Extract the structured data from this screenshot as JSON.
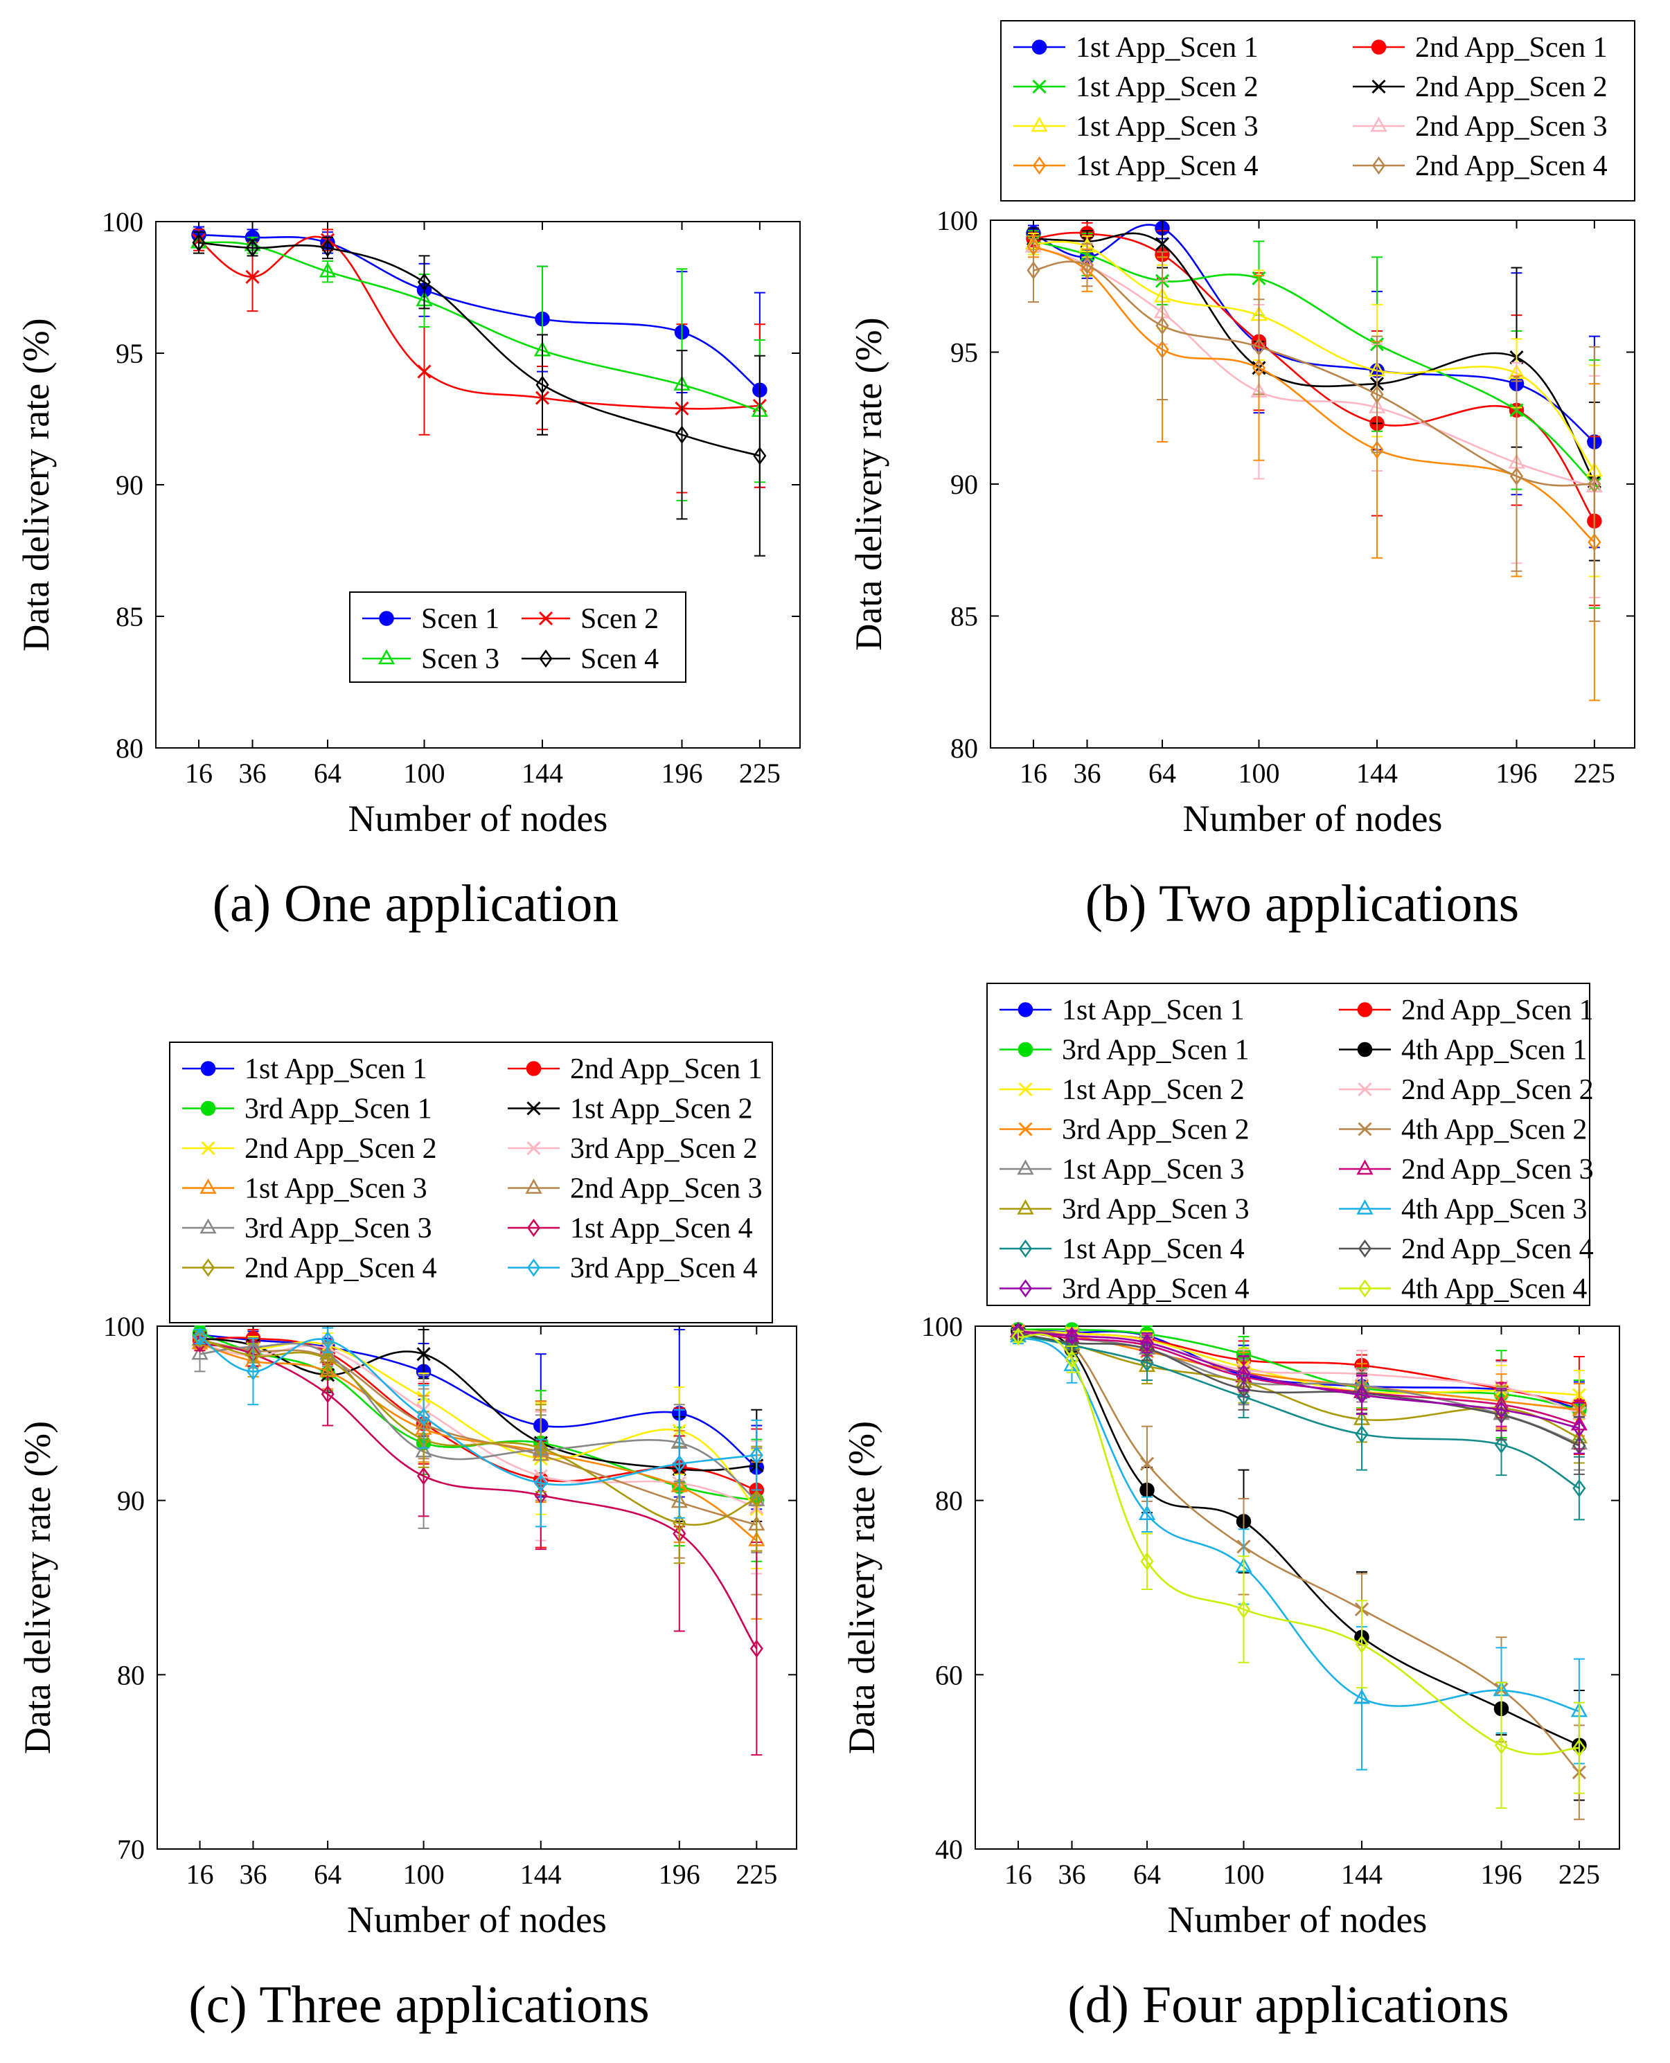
{
  "colors": {
    "blue": "#0000ff",
    "red": "#ff0000",
    "green": "#00dd00",
    "black": "#000000",
    "yellow": "#ffee00",
    "pink": "#ffb6c1",
    "orange": "#ff8800",
    "brown": "#b8864b",
    "gray": "#888888",
    "purple": "#9900aa",
    "cyan": "#1ab0e8",
    "teal": "#128b8b",
    "darkgray": "#555555",
    "olive": "#aa9900",
    "lime": "#ccee00",
    "crimson": "#cc0055"
  },
  "chart_data": [
    {
      "id": "a",
      "type": "line",
      "caption": "(a) One application",
      "xlabel": "Number of nodes",
      "ylabel": "Data delivery rate (%)",
      "x": [
        16,
        36,
        64,
        100,
        144,
        196,
        225
      ],
      "xticks": [
        "16",
        "36",
        "64",
        "100",
        "144",
        "196",
        "225"
      ],
      "ylim": [
        80,
        100
      ],
      "yticks": [
        80,
        85,
        90,
        95,
        100
      ],
      "legend_position": "inside-lower-right",
      "legend_cols": 2,
      "series": [
        {
          "name": "Scen 1",
          "color": "#0000ff",
          "marker": "dot",
          "values": [
            99.5,
            99.4,
            99.2,
            97.4,
            96.3,
            95.8,
            93.6
          ],
          "err": [
            0.3,
            0.3,
            0.4,
            1.0,
            2.0,
            2.3,
            3.7
          ]
        },
        {
          "name": "Scen 2",
          "color": "#ff0000",
          "marker": "x",
          "values": [
            99.3,
            97.9,
            99.3,
            94.3,
            93.3,
            92.9,
            93.0
          ],
          "err": [
            0.4,
            1.3,
            0.4,
            2.4,
            1.2,
            3.2,
            3.1
          ]
        },
        {
          "name": "Scen 3",
          "color": "#00dd00",
          "marker": "tri",
          "values": [
            99.2,
            99.1,
            98.1,
            97.0,
            95.1,
            93.8,
            92.8
          ],
          "err": [
            0.4,
            0.3,
            0.4,
            1.0,
            3.2,
            4.4,
            2.7
          ]
        },
        {
          "name": "Scen 4",
          "color": "#000000",
          "marker": "diamond",
          "values": [
            99.2,
            99.0,
            99.0,
            97.7,
            93.8,
            91.9,
            91.1
          ],
          "err": [
            0.4,
            0.3,
            0.4,
            1.0,
            1.9,
            3.2,
            3.8
          ]
        }
      ]
    },
    {
      "id": "b",
      "type": "line",
      "caption": "(b) Two applications",
      "xlabel": "Number of nodes",
      "ylabel": "Data delivery rate (%)",
      "x": [
        16,
        36,
        64,
        100,
        144,
        196,
        225
      ],
      "xticks": [
        "16",
        "36",
        "64",
        "100",
        "144",
        "196",
        "225"
      ],
      "ylim": [
        80,
        100
      ],
      "yticks": [
        80,
        85,
        90,
        95,
        100
      ],
      "legend_position": "above",
      "legend_cols": 2,
      "series": [
        {
          "name": "1st App_Scen 1",
          "color": "#0000ff",
          "marker": "dot",
          "values": [
            99.5,
            98.6,
            99.7,
            95.3,
            94.3,
            93.8,
            91.6
          ],
          "err": [
            0.3,
            0.8,
            0.4,
            2.6,
            3.0,
            4.2,
            4.0
          ]
        },
        {
          "name": "2nd App_Scen 1",
          "color": "#ff0000",
          "marker": "dot",
          "values": [
            99.3,
            99.5,
            98.7,
            95.4,
            92.3,
            92.8,
            88.6
          ],
          "err": [
            0.3,
            0.4,
            0.9,
            2.6,
            3.5,
            3.6,
            3.2
          ]
        },
        {
          "name": "1st App_Scen 2",
          "color": "#00dd00",
          "marker": "x",
          "values": [
            99.2,
            98.7,
            97.7,
            97.8,
            95.3,
            92.8,
            90.0
          ],
          "err": [
            0.4,
            0.8,
            0.9,
            1.4,
            3.3,
            3.0,
            4.7
          ]
        },
        {
          "name": "2nd App_Scen 2",
          "color": "#000000",
          "marker": "x",
          "values": [
            99.3,
            99.2,
            99.1,
            94.4,
            93.8,
            94.8,
            90.1
          ],
          "err": [
            0.4,
            0.4,
            0.9,
            1.0,
            1.5,
            3.4,
            3.0
          ]
        },
        {
          "name": "1st App_Scen 3",
          "color": "#ffee00",
          "marker": "tri",
          "values": [
            99.1,
            99.0,
            97.1,
            96.4,
            94.3,
            94.2,
            90.5
          ],
          "err": [
            0.4,
            0.4,
            1.2,
            1.7,
            2.5,
            1.3,
            4.0
          ]
        },
        {
          "name": "2nd App_Scen 3",
          "color": "#ffb6c1",
          "marker": "tri",
          "values": [
            99.0,
            98.3,
            96.5,
            93.5,
            92.9,
            90.8,
            89.9
          ],
          "err": [
            0.4,
            0.8,
            1.2,
            3.3,
            2.4,
            3.8,
            4.2
          ]
        },
        {
          "name": "1st App_Scen 4",
          "color": "#ff8800",
          "marker": "diamond",
          "values": [
            99.0,
            98.1,
            95.1,
            94.4,
            91.3,
            90.3,
            87.8
          ],
          "err": [
            0.4,
            0.8,
            3.5,
            3.5,
            4.1,
            3.8,
            6.0
          ]
        },
        {
          "name": "2nd App_Scen 4",
          "color": "#b8864b",
          "marker": "diamond",
          "values": [
            98.1,
            98.3,
            96.0,
            95.2,
            93.4,
            90.3,
            90.0
          ],
          "err": [
            1.2,
            0.8,
            2.8,
            1.8,
            2.2,
            3.6,
            5.2
          ]
        }
      ]
    },
    {
      "id": "c",
      "type": "line",
      "caption": "(c) Three applications",
      "xlabel": "Number of nodes",
      "ylabel": "Data delivery rate (%)",
      "x": [
        16,
        36,
        64,
        100,
        144,
        196,
        225
      ],
      "xticks": [
        "16",
        "36",
        "64",
        "100",
        "144",
        "196",
        "225"
      ],
      "ylim": [
        70,
        100
      ],
      "yticks": [
        70,
        80,
        90,
        100
      ],
      "legend_position": "above",
      "legend_cols": 2,
      "series": [
        {
          "name": "1st App_Scen 1",
          "color": "#0000ff",
          "marker": "dot",
          "values": [
            99.5,
            99.2,
            98.8,
            97.4,
            94.3,
            95.0,
            91.9
          ],
          "err": [
            0.4,
            0.5,
            0.5,
            1.6,
            4.1,
            4.8,
            2.4
          ]
        },
        {
          "name": "2nd App_Scen 1",
          "color": "#ff0000",
          "marker": "dot",
          "values": [
            99.2,
            99.3,
            98.5,
            94.4,
            91.2,
            91.9,
            90.6
          ],
          "err": [
            0.4,
            0.5,
            0.7,
            2.3,
            3.9,
            3.4,
            3.5
          ]
        },
        {
          "name": "3rd App_Scen 1",
          "color": "#00dd00",
          "marker": "dot",
          "values": [
            99.6,
            98.5,
            97.3,
            93.3,
            93.3,
            90.8,
            90.0
          ],
          "err": [
            0.4,
            0.5,
            1.0,
            1.8,
            3.0,
            3.4,
            3.5
          ]
        },
        {
          "name": "1st App_Scen 2",
          "color": "#000000",
          "marker": "x",
          "values": [
            99.3,
            98.9,
            97.2,
            98.4,
            93.3,
            91.8,
            92.0
          ],
          "err": [
            0.4,
            0.5,
            1.0,
            1.4,
            2.4,
            3.0,
            3.2
          ]
        },
        {
          "name": "2nd App_Scen 2",
          "color": "#ffee00",
          "marker": "x",
          "values": [
            99.1,
            98.7,
            98.9,
            95.9,
            92.4,
            94.0,
            89.5
          ],
          "err": [
            0.4,
            0.7,
            0.7,
            1.4,
            3.2,
            2.5,
            3.4
          ]
        },
        {
          "name": "3rd App_Scen 2",
          "color": "#ffb6c1",
          "marker": "x",
          "values": [
            99.0,
            98.3,
            98.7,
            95.2,
            91.4,
            91.0,
            89.6
          ],
          "err": [
            0.4,
            0.7,
            0.7,
            1.6,
            3.7,
            3.0,
            3.8
          ]
        },
        {
          "name": "1st App_Scen 3",
          "color": "#ff8800",
          "marker": "tri",
          "values": [
            99.0,
            98.0,
            97.4,
            94.1,
            92.8,
            90.8,
            87.7
          ],
          "err": [
            0.4,
            0.9,
            1.0,
            1.9,
            2.9,
            3.2,
            4.5
          ]
        },
        {
          "name": "2nd App_Scen 3",
          "color": "#b8864b",
          "marker": "tri",
          "values": [
            99.2,
            98.6,
            98.2,
            94.4,
            92.6,
            89.9,
            88.6
          ],
          "err": [
            0.4,
            0.7,
            0.9,
            2.0,
            2.6,
            3.2,
            4.0
          ]
        },
        {
          "name": "3rd App_Scen 3",
          "color": "#888888",
          "marker": "tri",
          "values": [
            98.4,
            98.8,
            98.4,
            92.8,
            92.9,
            93.3,
            90.0
          ],
          "err": [
            1.0,
            0.5,
            0.7,
            4.4,
            2.0,
            2.2,
            3.0
          ]
        },
        {
          "name": "1st App_Scen 4",
          "color": "#cc0055",
          "marker": "diamond",
          "values": [
            99.0,
            98.4,
            96.1,
            91.4,
            90.3,
            88.1,
            81.5
          ],
          "err": [
            0.4,
            0.7,
            1.8,
            2.3,
            3.1,
            5.6,
            6.1
          ]
        },
        {
          "name": "2nd App_Scen 4",
          "color": "#aa9900",
          "marker": "diamond",
          "values": [
            99.3,
            98.3,
            98.1,
            93.5,
            93.0,
            88.7,
            90.1
          ],
          "err": [
            0.4,
            0.7,
            0.9,
            1.6,
            2.5,
            2.3,
            3.0
          ]
        },
        {
          "name": "3rd App_Scen 4",
          "color": "#1ab0e8",
          "marker": "diamond",
          "values": [
            99.4,
            97.4,
            99.2,
            94.8,
            91.0,
            92.1,
            92.6
          ],
          "err": [
            0.4,
            1.9,
            0.7,
            1.8,
            2.5,
            3.1,
            2.0
          ]
        }
      ]
    },
    {
      "id": "d",
      "type": "line",
      "caption": "(d) Four applications",
      "xlabel": "Number of nodes",
      "ylabel": "Data delivery rate (%)",
      "x": [
        16,
        36,
        64,
        100,
        144,
        196,
        225
      ],
      "xticks": [
        "16",
        "36",
        "64",
        "100",
        "144",
        "196",
        "225"
      ],
      "ylim": [
        40,
        100
      ],
      "yticks": [
        40,
        60,
        80,
        100
      ],
      "legend_position": "above",
      "legend_cols": 2,
      "series": [
        {
          "name": "1st App_Scen 1",
          "color": "#0000ff",
          "marker": "dot",
          "values": [
            99.6,
            99.3,
            98.9,
            94.4,
            93.1,
            92.7,
            90.5
          ],
          "err": [
            0.4,
            0.6,
            1.1,
            3.4,
            2.6,
            3.3,
            3.1
          ]
        },
        {
          "name": "2nd App_Scen 1",
          "color": "#ff0000",
          "marker": "dot",
          "values": [
            99.5,
            99.2,
            98.5,
            96.1,
            95.5,
            92.8,
            90.9
          ],
          "err": [
            0.4,
            0.6,
            1.0,
            2.2,
            1.2,
            3.3,
            5.6
          ]
        },
        {
          "name": "3rd App_Scen 1",
          "color": "#00dd00",
          "marker": "dot",
          "values": [
            99.6,
            99.6,
            99.1,
            96.8,
            92.9,
            92.2,
            90.4
          ],
          "err": [
            0.4,
            0.6,
            1.0,
            2.0,
            2.3,
            5.0,
            3.4
          ]
        },
        {
          "name": "4th App_Scen 1",
          "color": "#000000",
          "marker": "dot",
          "values": [
            99.4,
            97.3,
            81.2,
            77.6,
            64.3,
            56.1,
            51.9
          ],
          "err": [
            0.4,
            1.3,
            2.6,
            5.9,
            7.5,
            3.0,
            6.3
          ]
        },
        {
          "name": "1st App_Scen 2",
          "color": "#ffee00",
          "marker": "x",
          "values": [
            99.5,
            99.2,
            98.4,
            95.3,
            92.5,
            92.6,
            92.1
          ],
          "err": [
            0.4,
            0.6,
            1.0,
            2.2,
            2.6,
            2.9,
            2.8
          ]
        },
        {
          "name": "2nd App_Scen 2",
          "color": "#ffb6c1",
          "marker": "x",
          "values": [
            99.5,
            99.0,
            98.1,
            95.0,
            94.5,
            93.0,
            90.0
          ],
          "err": [
            0.4,
            0.6,
            1.0,
            2.3,
            2.7,
            2.9,
            3.4
          ]
        },
        {
          "name": "3rd App_Scen 2",
          "color": "#ff8800",
          "marker": "x",
          "values": [
            99.4,
            98.9,
            97.1,
            94.7,
            93.1,
            91.4,
            90.4
          ],
          "err": [
            0.4,
            0.6,
            1.3,
            2.3,
            2.6,
            3.1,
            3.0
          ]
        },
        {
          "name": "4th App_Scen 2",
          "color": "#b8864b",
          "marker": "x",
          "values": [
            99.0,
            97.9,
            84.2,
            74.7,
            67.5,
            58.3,
            48.8
          ],
          "err": [
            0.4,
            1.0,
            4.3,
            5.5,
            4.1,
            6.0,
            5.4
          ]
        },
        {
          "name": "1st App_Scen 3",
          "color": "#888888",
          "marker": "tri",
          "values": [
            99.4,
            98.6,
            97.4,
            93.6,
            93.2,
            89.9,
            86.5
          ],
          "err": [
            0.4,
            0.8,
            1.4,
            2.6,
            1.9,
            3.0,
            3.0
          ]
        },
        {
          "name": "2nd App_Scen 3",
          "color": "#cc0077",
          "marker": "tri",
          "values": [
            99.4,
            98.6,
            97.8,
            94.2,
            92.4,
            91.0,
            88.7
          ],
          "err": [
            0.4,
            0.8,
            1.2,
            2.3,
            2.0,
            2.5,
            2.8
          ]
        },
        {
          "name": "3rd App_Scen 3",
          "color": "#aa9900",
          "marker": "tri",
          "values": [
            99.1,
            97.9,
            95.4,
            93.6,
            89.3,
            90.6,
            87.2
          ],
          "err": [
            0.4,
            1.0,
            2.0,
            2.4,
            2.6,
            2.5,
            2.9
          ]
        },
        {
          "name": "4th App_Scen 3",
          "color": "#1ab0e8",
          "marker": "tri",
          "values": [
            98.8,
            95.5,
            78.4,
            72.4,
            57.3,
            58.2,
            55.8
          ],
          "err": [
            0.8,
            2.0,
            2.0,
            4.3,
            8.2,
            4.9,
            6.0
          ]
        },
        {
          "name": "1st App_Scen 4",
          "color": "#128b8b",
          "marker": "diamond",
          "values": [
            99.0,
            97.8,
            95.8,
            91.9,
            87.6,
            86.4,
            81.4
          ],
          "err": [
            0.6,
            1.1,
            2.0,
            2.4,
            4.1,
            3.5,
            3.6
          ]
        },
        {
          "name": "2nd App_Scen 4",
          "color": "#555555",
          "marker": "diamond",
          "values": [
            99.2,
            98.1,
            97.4,
            92.8,
            92.3,
            89.8,
            86.3
          ],
          "err": [
            0.4,
            0.9,
            1.3,
            2.4,
            2.3,
            2.8,
            3.3
          ]
        },
        {
          "name": "3rd App_Scen 4",
          "color": "#9900aa",
          "marker": "diamond",
          "values": [
            99.4,
            98.9,
            98.1,
            94.6,
            92.1,
            90.4,
            88.3
          ],
          "err": [
            0.4,
            0.6,
            1.1,
            2.0,
            2.2,
            2.4,
            2.9
          ]
        },
        {
          "name": "4th App_Scen 4",
          "color": "#ccee00",
          "marker": "diamond",
          "values": [
            98.8,
            96.2,
            73.0,
            67.5,
            63.5,
            51.9,
            51.6
          ],
          "err": [
            0.6,
            1.5,
            3.2,
            6.1,
            5.0,
            7.2,
            5.2
          ]
        }
      ]
    }
  ]
}
